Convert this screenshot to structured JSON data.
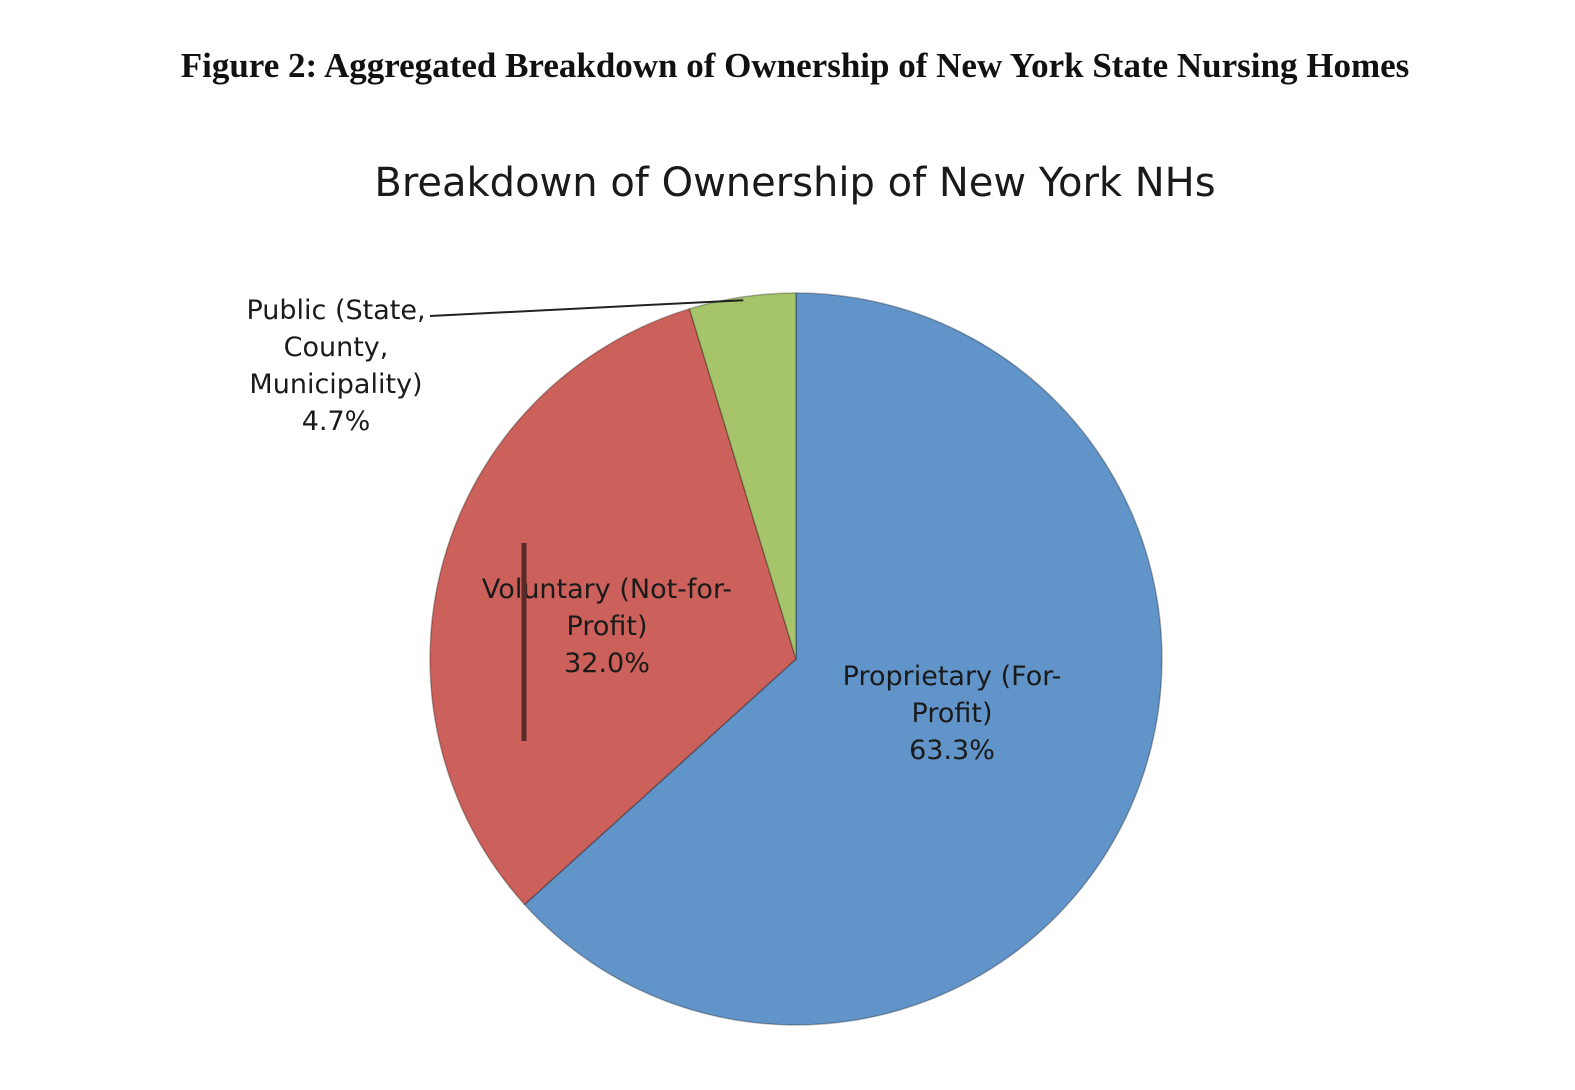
{
  "figure_caption": "Figure 2: Aggregated Breakdown of Ownership of New York State Nursing Homes",
  "chart_data": {
    "type": "pie",
    "title": "Breakdown of Ownership of New York NHs",
    "slices": [
      {
        "label_lines": [
          "Proprietary (For-",
          "Profit)"
        ],
        "value": 63.3,
        "value_label": "63.3%",
        "color": "#6194c9"
      },
      {
        "label_lines": [
          "Voluntary (Not-for-",
          "Profit)"
        ],
        "value": 32.0,
        "value_label": "32.0%",
        "color": "#cc605a"
      },
      {
        "label_lines": [
          "Public (State,",
          "County,",
          "Municipality)"
        ],
        "value": 4.7,
        "value_label": "4.7%",
        "color": "#a6c46a"
      }
    ],
    "start_angle": "12 o'clock",
    "direction": "clockwise"
  }
}
